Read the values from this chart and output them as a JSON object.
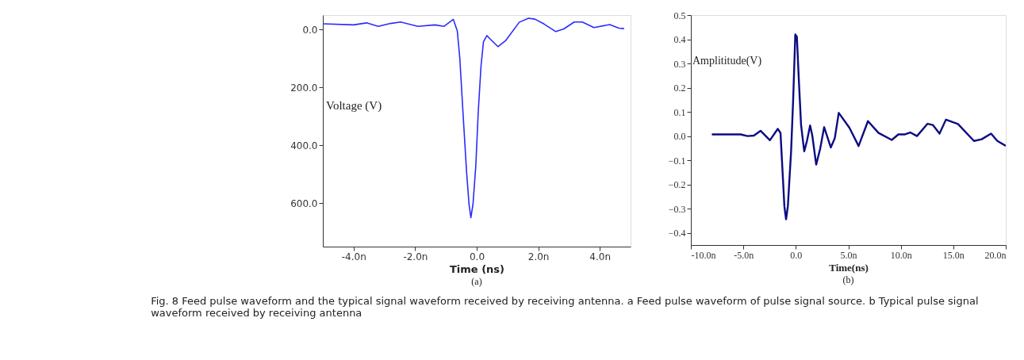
{
  "chart_data": [
    {
      "type": "line",
      "xlabel": "Time (ns)",
      "ylabel": "Voltage (V)",
      "annotations": [
        "(a)"
      ],
      "line_style": "solid",
      "xlim": [
        -5,
        5
      ],
      "ylim": [
        750,
        -50
      ],
      "xticks": [
        {
          "value": -4,
          "label": "-4.0n"
        },
        {
          "value": -2,
          "label": "-2.0n"
        },
        {
          "value": 0,
          "label": "0.0"
        },
        {
          "value": 2,
          "label": "2.0n"
        },
        {
          "value": 4,
          "label": "4.0n"
        }
      ],
      "yticks": [
        {
          "value": 0,
          "label": "0.0"
        },
        {
          "value": 200,
          "label": "200.0"
        },
        {
          "value": 400,
          "label": "400.0"
        },
        {
          "value": 600,
          "label": "600.0"
        }
      ],
      "series": [
        {
          "color": "#2b2bff",
          "x": [
            -5,
            -4,
            -3.58,
            -3.2,
            -2.8,
            -2.47,
            -1.91,
            -1.36,
            -1.06,
            -0.76,
            -0.63,
            -0.55,
            -0.42,
            -0.33,
            -0.25,
            -0.19,
            -0.12,
            -0.03,
            0.05,
            0.14,
            0.22,
            0.33,
            0.44,
            0.69,
            0.95,
            1.38,
            1.68,
            1.89,
            2.19,
            2.57,
            2.83,
            3.17,
            3.43,
            3.81,
            4.32,
            4.62,
            4.79
          ],
          "values": [
            -20,
            -16,
            -23,
            -11,
            -21,
            -26,
            -11,
            -16,
            -11,
            -35,
            5,
            98,
            332,
            490,
            603,
            650,
            603,
            472,
            285,
            126,
            42,
            21,
            33,
            59,
            37,
            -25,
            -39,
            -36,
            -19,
            7,
            -2,
            -26,
            -26,
            -7,
            -17,
            -5,
            -3
          ]
        }
      ]
    },
    {
      "type": "line",
      "xlabel": "Time(ns)",
      "ylabel": "Amplititude(V)",
      "annotations": [
        "(b)",
        "Fig. 8 Feed pulse waveform and the typical signal waveform received by receiving antenna. a Feed pulse waveform of pulse signal source. b Typical pulse signal waveform received by receiving antenna"
      ],
      "line_style": "solid",
      "xlim": [
        -10,
        20
      ],
      "ylim": [
        -0.45,
        0.5
      ],
      "xticks": [
        {
          "value": -10,
          "label": "-10.0n"
        },
        {
          "value": -5,
          "label": "-5.0n"
        },
        {
          "value": 0,
          "label": "0.0"
        },
        {
          "value": 5,
          "label": "5.0n"
        },
        {
          "value": 10,
          "label": "10.0n"
        },
        {
          "value": 15,
          "label": "15.0n"
        },
        {
          "value": 20,
          "label": "20.0n"
        }
      ],
      "yticks": [
        0.5,
        0.4,
        0.3,
        0.2,
        0.1,
        {
          "value": 0,
          "label": "0.0"
        },
        -0.1,
        -0.2,
        -0.3,
        -0.4
      ],
      "series": [
        {
          "color": "#0c0c82",
          "x": [
            -8.0,
            -5.25,
            -4.6,
            -4.0,
            -3.36,
            -2.47,
            -1.72,
            -1.46,
            -1.26,
            -1.09,
            -0.93,
            -0.76,
            -0.45,
            -0.25,
            -0.05,
            0.1,
            0.3,
            0.5,
            0.8,
            1.06,
            1.36,
            1.57,
            1.94,
            2.32,
            2.7,
            3.33,
            3.71,
            4.09,
            5.1,
            5.98,
            6.87,
            7.88,
            9.14,
            9.77,
            10.4,
            10.9,
            11.54,
            12.55,
            13.05,
            13.69,
            14.3,
            15.45,
            16.97,
            17.7,
            18.6,
            19.2,
            20
          ],
          "values": [
            0.007,
            0.007,
            0,
            0.002,
            0.022,
            -0.017,
            0.03,
            0.013,
            -0.15,
            -0.29,
            -0.344,
            -0.29,
            -0.063,
            0.155,
            0.42,
            0.41,
            0.22,
            0.046,
            -0.063,
            -0.02,
            0.044,
            0.002,
            -0.118,
            -0.052,
            0.037,
            -0.047,
            -0.009,
            0.096,
            0.035,
            -0.041,
            0.062,
            0.013,
            -0.016,
            0.007,
            0.007,
            0.015,
            0,
            0.051,
            0.046,
            0.01,
            0.068,
            0.05,
            -0.02,
            -0.013,
            0.01,
            -0.02,
            -0.04
          ]
        }
      ]
    }
  ]
}
